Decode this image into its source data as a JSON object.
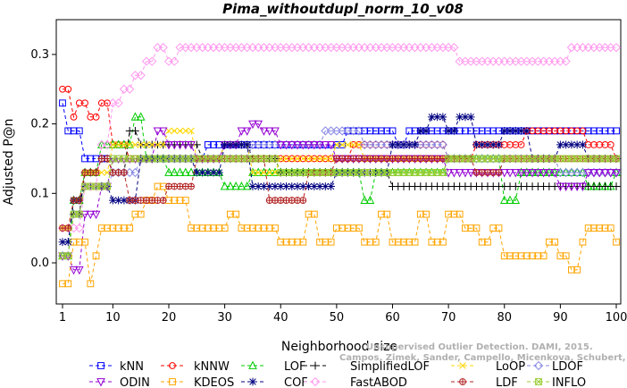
{
  "chart_data": {
    "type": "line",
    "title": "Pima_withoutdupl_norm_10_v08",
    "xlabel": "Neighborhood size",
    "ylabel": "Adjusted P@n",
    "xlim": [
      0,
      100
    ],
    "ylim": [
      -0.05,
      0.34
    ],
    "x_ticks": [
      1,
      10,
      20,
      30,
      40,
      50,
      60,
      70,
      80,
      90,
      100
    ],
    "y_ticks": [
      0.0,
      0.1,
      0.2,
      0.3
    ],
    "x_tick_labels": [
      "1",
      "10",
      "20",
      "30",
      "40",
      "50",
      "60",
      "70",
      "80",
      "90",
      "100"
    ],
    "y_tick_labels": [
      "0.0",
      "0.1",
      "0.2",
      "0.3"
    ],
    "grid": false,
    "legend_position": "bottom",
    "series": [
      {
        "name": "kNN",
        "color": "#0000ff",
        "marker": "square",
        "points": [
          [
            1,
            0.23
          ],
          [
            2,
            0.19
          ],
          [
            5,
            0.15
          ],
          [
            10,
            0.15
          ],
          [
            20,
            0.15
          ],
          [
            25,
            0.15
          ],
          [
            27,
            0.17
          ],
          [
            33,
            0.17
          ],
          [
            35,
            0.17
          ],
          [
            40,
            0.17
          ],
          [
            50,
            0.17
          ],
          [
            52,
            0.19
          ],
          [
            60,
            0.19
          ],
          [
            61,
            0.17
          ],
          [
            63,
            0.19
          ],
          [
            70,
            0.19
          ],
          [
            80,
            0.19
          ],
          [
            90,
            0.19
          ],
          [
            100,
            0.19
          ]
        ]
      },
      {
        "name": "kNNW",
        "color": "#ff0000",
        "marker": "circle",
        "points": [
          [
            1,
            0.25
          ],
          [
            2,
            0.25
          ],
          [
            3,
            0.21
          ],
          [
            4,
            0.23
          ],
          [
            6,
            0.21
          ],
          [
            8,
            0.23
          ],
          [
            10,
            0.17
          ],
          [
            13,
            0.15
          ],
          [
            20,
            0.15
          ],
          [
            25,
            0.15
          ],
          [
            30,
            0.15
          ],
          [
            40,
            0.15
          ],
          [
            50,
            0.15
          ],
          [
            53,
            0.17
          ],
          [
            60,
            0.17
          ],
          [
            65,
            0.17
          ],
          [
            70,
            0.15
          ],
          [
            75,
            0.17
          ],
          [
            80,
            0.17
          ],
          [
            84,
            0.19
          ],
          [
            90,
            0.19
          ],
          [
            95,
            0.17
          ],
          [
            100,
            0.15
          ]
        ]
      },
      {
        "name": "LOF",
        "color": "#00cc00",
        "marker": "triangle",
        "points": [
          [
            1,
            0.01
          ],
          [
            3,
            0.09
          ],
          [
            5,
            0.13
          ],
          [
            8,
            0.17
          ],
          [
            12,
            0.17
          ],
          [
            14,
            0.21
          ],
          [
            16,
            0.15
          ],
          [
            20,
            0.13
          ],
          [
            25,
            0.13
          ],
          [
            30,
            0.11
          ],
          [
            35,
            0.13
          ],
          [
            40,
            0.13
          ],
          [
            50,
            0.13
          ],
          [
            55,
            0.09
          ],
          [
            57,
            0.13
          ],
          [
            65,
            0.13
          ],
          [
            70,
            0.15
          ],
          [
            75,
            0.15
          ],
          [
            80,
            0.09
          ],
          [
            83,
            0.13
          ],
          [
            90,
            0.13
          ],
          [
            95,
            0.11
          ],
          [
            100,
            0.13
          ]
        ]
      },
      {
        "name": "SimplifiedLOF",
        "color": "#000000",
        "marker": "plus",
        "points": [
          [
            1,
            0.05
          ],
          [
            3,
            0.07
          ],
          [
            5,
            0.13
          ],
          [
            8,
            0.15
          ],
          [
            10,
            0.13
          ],
          [
            13,
            0.19
          ],
          [
            15,
            0.17
          ],
          [
            20,
            0.17
          ],
          [
            26,
            0.15
          ],
          [
            30,
            0.17
          ],
          [
            35,
            0.15
          ],
          [
            40,
            0.13
          ],
          [
            50,
            0.13
          ],
          [
            55,
            0.13
          ],
          [
            60,
            0.11
          ],
          [
            65,
            0.11
          ],
          [
            70,
            0.11
          ],
          [
            75,
            0.11
          ],
          [
            80,
            0.11
          ],
          [
            90,
            0.11
          ],
          [
            100,
            0.11
          ]
        ]
      },
      {
        "name": "LoOP",
        "color": "#ffd700",
        "marker": "x",
        "points": [
          [
            1,
            0.05
          ],
          [
            3,
            0.09
          ],
          [
            5,
            0.13
          ],
          [
            10,
            0.17
          ],
          [
            15,
            0.17
          ],
          [
            20,
            0.19
          ],
          [
            25,
            0.15
          ],
          [
            30,
            0.17
          ],
          [
            35,
            0.13
          ],
          [
            40,
            0.15
          ],
          [
            50,
            0.17
          ],
          [
            55,
            0.15
          ],
          [
            60,
            0.15
          ],
          [
            70,
            0.15
          ],
          [
            80,
            0.15
          ],
          [
            90,
            0.15
          ],
          [
            100,
            0.15
          ]
        ]
      },
      {
        "name": "LDOF",
        "color": "#8a8ae6",
        "marker": "diamond",
        "points": [
          [
            1,
            0.01
          ],
          [
            3,
            0.07
          ],
          [
            5,
            0.11
          ],
          [
            10,
            0.13
          ],
          [
            15,
            0.15
          ],
          [
            20,
            0.15
          ],
          [
            25,
            0.15
          ],
          [
            30,
            0.15
          ],
          [
            35,
            0.17
          ],
          [
            40,
            0.17
          ],
          [
            45,
            0.17
          ],
          [
            48,
            0.19
          ],
          [
            50,
            0.19
          ],
          [
            55,
            0.17
          ],
          [
            60,
            0.17
          ],
          [
            70,
            0.15
          ],
          [
            80,
            0.15
          ],
          [
            90,
            0.13
          ],
          [
            100,
            0.13
          ]
        ]
      },
      {
        "name": "ODIN",
        "color": "#9400d3",
        "marker": "triangle-down",
        "points": [
          [
            1,
            0.01
          ],
          [
            3,
            -0.01
          ],
          [
            5,
            0.07
          ],
          [
            8,
            0.11
          ],
          [
            10,
            0.15
          ],
          [
            15,
            0.15
          ],
          [
            18,
            0.19
          ],
          [
            20,
            0.17
          ],
          [
            25,
            0.15
          ],
          [
            30,
            0.17
          ],
          [
            33,
            0.19
          ],
          [
            35,
            0.2
          ],
          [
            37,
            0.19
          ],
          [
            40,
            0.17
          ],
          [
            50,
            0.15
          ],
          [
            60,
            0.15
          ],
          [
            70,
            0.13
          ],
          [
            80,
            0.13
          ],
          [
            90,
            0.11
          ],
          [
            95,
            0.13
          ],
          [
            100,
            0.13
          ]
        ]
      },
      {
        "name": "KDEOS",
        "color": "#ffa500",
        "marker": "square",
        "points": [
          [
            1,
            -0.03
          ],
          [
            3,
            0.03
          ],
          [
            5,
            0.03
          ],
          [
            6,
            -0.03
          ],
          [
            7,
            0.01
          ],
          [
            8,
            0.05
          ],
          [
            10,
            0.05
          ],
          [
            12,
            0.05
          ],
          [
            14,
            0.07
          ],
          [
            16,
            0.09
          ],
          [
            18,
            0.11
          ],
          [
            20,
            0.09
          ],
          [
            22,
            0.09
          ],
          [
            24,
            0.05
          ],
          [
            30,
            0.05
          ],
          [
            31,
            0.07
          ],
          [
            33,
            0.05
          ],
          [
            40,
            0.03
          ],
          [
            45,
            0.07
          ],
          [
            47,
            0.03
          ],
          [
            50,
            0.05
          ],
          [
            55,
            0.03
          ],
          [
            58,
            0.07
          ],
          [
            60,
            0.03
          ],
          [
            65,
            0.07
          ],
          [
            67,
            0.03
          ],
          [
            70,
            0.07
          ],
          [
            73,
            0.05
          ],
          [
            76,
            0.03
          ],
          [
            78,
            0.05
          ],
          [
            80,
            0.01
          ],
          [
            85,
            0.01
          ],
          [
            88,
            0.03
          ],
          [
            90,
            0.01
          ],
          [
            92,
            -0.01
          ],
          [
            94,
            0.03
          ],
          [
            95,
            0.05
          ],
          [
            100,
            0.03
          ]
        ]
      },
      {
        "name": "COF",
        "color": "#000080",
        "marker": "star",
        "points": [
          [
            1,
            0.03
          ],
          [
            3,
            0.09
          ],
          [
            5,
            0.11
          ],
          [
            10,
            0.09
          ],
          [
            15,
            0.15
          ],
          [
            20,
            0.15
          ],
          [
            25,
            0.13
          ],
          [
            30,
            0.17
          ],
          [
            35,
            0.11
          ],
          [
            40,
            0.11
          ],
          [
            45,
            0.11
          ],
          [
            50,
            0.13
          ],
          [
            55,
            0.13
          ],
          [
            60,
            0.17
          ],
          [
            65,
            0.19
          ],
          [
            67,
            0.21
          ],
          [
            70,
            0.19
          ],
          [
            72,
            0.21
          ],
          [
            75,
            0.17
          ],
          [
            80,
            0.19
          ],
          [
            85,
            0.15
          ],
          [
            90,
            0.17
          ],
          [
            95,
            0.15
          ],
          [
            100,
            0.15
          ]
        ]
      },
      {
        "name": "FastABOD",
        "color": "#ff99ee",
        "marker": "diamond",
        "points": [
          [
            1,
            0.05
          ],
          [
            5,
            0.11
          ],
          [
            8,
            0.17
          ],
          [
            10,
            0.23
          ],
          [
            12,
            0.25
          ],
          [
            14,
            0.27
          ],
          [
            16,
            0.29
          ],
          [
            18,
            0.31
          ],
          [
            20,
            0.29
          ],
          [
            22,
            0.31
          ],
          [
            25,
            0.31
          ],
          [
            30,
            0.31
          ],
          [
            40,
            0.31
          ],
          [
            50,
            0.31
          ],
          [
            60,
            0.31
          ],
          [
            70,
            0.31
          ],
          [
            72,
            0.29
          ],
          [
            80,
            0.29
          ],
          [
            90,
            0.29
          ],
          [
            92,
            0.31
          ],
          [
            100,
            0.31
          ]
        ]
      },
      {
        "name": "LDF",
        "color": "#b22222",
        "marker": "circle-plus",
        "points": [
          [
            1,
            0.05
          ],
          [
            3,
            0.09
          ],
          [
            5,
            0.13
          ],
          [
            8,
            0.15
          ],
          [
            10,
            0.13
          ],
          [
            13,
            0.09
          ],
          [
            15,
            0.09
          ],
          [
            20,
            0.11
          ],
          [
            25,
            0.15
          ],
          [
            30,
            0.15
          ],
          [
            35,
            0.15
          ],
          [
            38,
            0.09
          ],
          [
            40,
            0.09
          ],
          [
            45,
            0.13
          ],
          [
            50,
            0.15
          ],
          [
            55,
            0.15
          ],
          [
            60,
            0.15
          ],
          [
            65,
            0.15
          ],
          [
            70,
            0.15
          ],
          [
            75,
            0.13
          ],
          [
            80,
            0.15
          ],
          [
            85,
            0.15
          ],
          [
            90,
            0.15
          ],
          [
            100,
            0.15
          ]
        ]
      },
      {
        "name": "INFLO",
        "color": "#9acd32",
        "marker": "x-square",
        "points": [
          [
            1,
            0.01
          ],
          [
            3,
            0.07
          ],
          [
            5,
            0.11
          ],
          [
            10,
            0.15
          ],
          [
            15,
            0.15
          ],
          [
            20,
            0.15
          ],
          [
            25,
            0.15
          ],
          [
            30,
            0.15
          ],
          [
            40,
            0.13
          ],
          [
            50,
            0.13
          ],
          [
            60,
            0.13
          ],
          [
            70,
            0.15
          ],
          [
            80,
            0.15
          ],
          [
            90,
            0.15
          ],
          [
            100,
            0.15
          ]
        ]
      }
    ]
  },
  "watermark": {
    "line1": "Unsupervised Outlier Detection. DAMI, 2015.",
    "line2": "Campos, Zimek, Sander, Campello, Micenkova, Schubert, Assent, Houle"
  }
}
